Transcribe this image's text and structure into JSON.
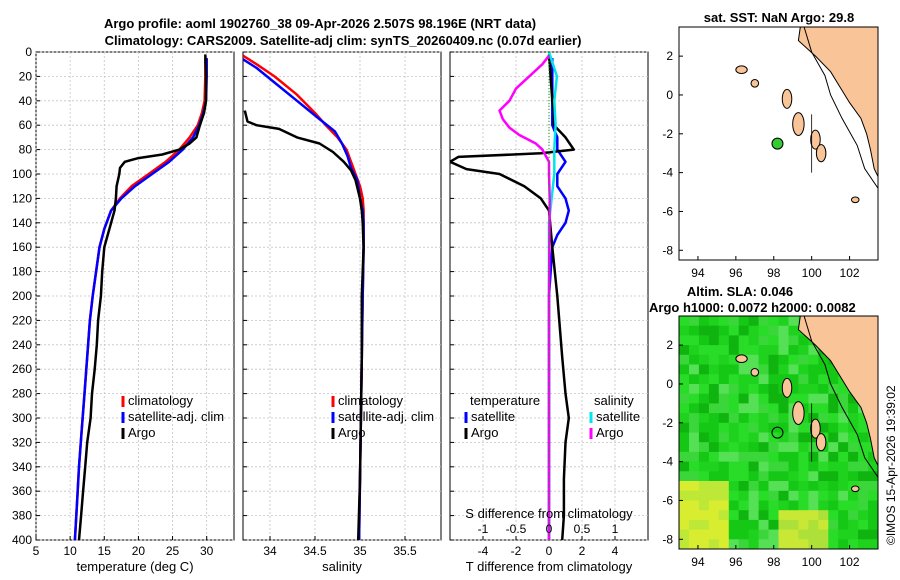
{
  "title_line1": "Argo profile: aoml 1902760_38 09-Apr-2026 2.507S 98.196E (NRT data)",
  "title_line2": "Climatology: CARS2009. Satellite-adj clim: synTS_20260409.nc (0.07d earlier)",
  "timestamp": "©IMOS 15-Apr-2026 19:39:02",
  "colors": {
    "climatology": "#ff0000",
    "satellite": "#0000ff",
    "argo": "#000000",
    "sal_sat": "#00e5ee",
    "sal_argo": "#ff00ff",
    "land": "#f9c497"
  },
  "chart_data": [
    {
      "id": "temperature",
      "type": "line",
      "xlabel": "temperature (deg C)",
      "ylabel": "",
      "xlim": [
        5,
        34
      ],
      "ylim": [
        0,
        400
      ],
      "y_reversed": true,
      "xticks": [
        5,
        10,
        15,
        20,
        25,
        30
      ],
      "yticks": [
        0,
        20,
        40,
        60,
        80,
        100,
        120,
        140,
        160,
        180,
        200,
        220,
        240,
        260,
        280,
        300,
        320,
        340,
        360,
        380,
        400
      ],
      "legend": [
        "climatology",
        "satellite-adj. clim",
        "Argo"
      ],
      "series": [
        {
          "name": "climatology",
          "color": "#ff0000",
          "points": [
            [
              29.8,
              5
            ],
            [
              29.8,
              20
            ],
            [
              29.7,
              40
            ],
            [
              29.3,
              50
            ],
            [
              28.7,
              60
            ],
            [
              27.5,
              70
            ],
            [
              26.0,
              80
            ],
            [
              24.0,
              90
            ],
            [
              21.5,
              100
            ],
            [
              19.0,
              110
            ],
            [
              17.3,
              120
            ],
            [
              16.0,
              130
            ],
            [
              15.0,
              145
            ],
            [
              14.3,
              160
            ],
            [
              13.8,
              180
            ],
            [
              13.3,
              200
            ],
            [
              12.9,
              220
            ],
            [
              12.5,
              250
            ],
            [
              12.1,
              280
            ],
            [
              11.7,
              310
            ],
            [
              11.3,
              340
            ],
            [
              11.0,
              370
            ],
            [
              10.7,
              400
            ]
          ]
        },
        {
          "name": "satellite-adj. clim",
          "color": "#0000ff",
          "points": [
            [
              30.0,
              5
            ],
            [
              30.0,
              20
            ],
            [
              29.9,
              40
            ],
            [
              29.5,
              50
            ],
            [
              28.9,
              60
            ],
            [
              28.0,
              70
            ],
            [
              26.5,
              80
            ],
            [
              24.5,
              90
            ],
            [
              22.0,
              100
            ],
            [
              19.5,
              110
            ],
            [
              17.5,
              120
            ],
            [
              16.0,
              130
            ],
            [
              15.0,
              145
            ],
            [
              14.3,
              160
            ],
            [
              13.8,
              180
            ],
            [
              13.3,
              200
            ],
            [
              12.9,
              220
            ],
            [
              12.5,
              250
            ],
            [
              12.1,
              280
            ],
            [
              11.7,
              310
            ],
            [
              11.3,
              340
            ],
            [
              11.0,
              370
            ],
            [
              10.7,
              400
            ]
          ]
        },
        {
          "name": "Argo",
          "color": "#000000",
          "points": [
            [
              29.8,
              2
            ],
            [
              29.9,
              20
            ],
            [
              29.9,
              40
            ],
            [
              29.6,
              50
            ],
            [
              29.0,
              60
            ],
            [
              28.5,
              70
            ],
            [
              27.5,
              75
            ],
            [
              26.0,
              80
            ],
            [
              23.5,
              84
            ],
            [
              20.0,
              87
            ],
            [
              18.0,
              90
            ],
            [
              17.3,
              95
            ],
            [
              17.2,
              100
            ],
            [
              16.8,
              110
            ],
            [
              16.7,
              120
            ],
            [
              16.5,
              130
            ],
            [
              16.0,
              140
            ],
            [
              15.5,
              150
            ],
            [
              15.0,
              160
            ],
            [
              14.7,
              180
            ],
            [
              14.5,
              200
            ],
            [
              14.1,
              220
            ],
            [
              13.9,
              240
            ],
            [
              13.6,
              260
            ],
            [
              13.2,
              280
            ],
            [
              13.0,
              300
            ],
            [
              12.5,
              320
            ],
            [
              12.2,
              340
            ],
            [
              11.9,
              360
            ],
            [
              11.6,
              380
            ],
            [
              11.3,
              400
            ]
          ]
        }
      ]
    },
    {
      "id": "salinity",
      "type": "line",
      "xlabel": "salinity",
      "ylabel": "",
      "xlim": [
        33.7,
        35.9
      ],
      "ylim": [
        0,
        400
      ],
      "y_reversed": true,
      "xticks": [
        34,
        34.5,
        35,
        35.5
      ],
      "legend": [
        "climatology",
        "satellite-adj. clim",
        "Argo"
      ],
      "series": [
        {
          "name": "climatology",
          "color": "#ff0000",
          "points": [
            [
              33.7,
              3
            ],
            [
              33.85,
              10
            ],
            [
              34.05,
              20
            ],
            [
              34.3,
              35
            ],
            [
              34.5,
              50
            ],
            [
              34.62,
              60
            ],
            [
              34.75,
              70
            ],
            [
              34.85,
              80
            ],
            [
              34.9,
              90
            ],
            [
              34.95,
              100
            ],
            [
              35.0,
              110
            ],
            [
              35.03,
              120
            ],
            [
              35.04,
              130
            ],
            [
              35.04,
              140
            ],
            [
              35.04,
              160
            ],
            [
              35.03,
              200
            ],
            [
              35.02,
              250
            ],
            [
              35.01,
              300
            ],
            [
              35.0,
              350
            ],
            [
              34.99,
              400
            ]
          ]
        },
        {
          "name": "satellite-adj. clim",
          "color": "#0000ff",
          "points": [
            [
              33.7,
              6
            ],
            [
              33.85,
              13
            ],
            [
              34.05,
              25
            ],
            [
              34.3,
              40
            ],
            [
              34.55,
              55
            ],
            [
              34.72,
              65
            ],
            [
              34.8,
              75
            ],
            [
              34.86,
              85
            ],
            [
              34.9,
              95
            ],
            [
              34.97,
              105
            ],
            [
              35.0,
              120
            ],
            [
              35.03,
              130
            ],
            [
              35.04,
              140
            ],
            [
              35.04,
              160
            ],
            [
              35.03,
              200
            ],
            [
              35.02,
              250
            ],
            [
              35.01,
              300
            ],
            [
              35.0,
              350
            ],
            [
              34.99,
              400
            ]
          ]
        },
        {
          "name": "Argo",
          "color": "#000000",
          "points": [
            [
              33.72,
              48
            ],
            [
              33.75,
              57
            ],
            [
              33.85,
              60
            ],
            [
              34.1,
              63
            ],
            [
              34.3,
              70
            ],
            [
              34.55,
              75
            ],
            [
              34.7,
              82
            ],
            [
              34.82,
              90
            ],
            [
              34.9,
              97
            ],
            [
              34.95,
              105
            ],
            [
              35.0,
              120
            ],
            [
              35.02,
              130
            ],
            [
              35.03,
              140
            ],
            [
              35.04,
              160
            ],
            [
              35.02,
              200
            ],
            [
              35.02,
              250
            ],
            [
              35.01,
              300
            ],
            [
              35.0,
              350
            ],
            [
              34.98,
              400
            ]
          ]
        }
      ]
    },
    {
      "id": "difference",
      "type": "line",
      "xlabel": "T difference from climatology",
      "xlabel_top": "S difference from climatology",
      "xlim": [
        -6,
        6
      ],
      "ylim": [
        0,
        400
      ],
      "y_reversed": true,
      "xticks": [
        -4,
        -2,
        0,
        2,
        4
      ],
      "sticks": [
        -1,
        -0.5,
        0,
        0.5,
        1
      ],
      "s_scale": 4,
      "legend_left_title": "temperature",
      "legend_right_title": "salinity",
      "legend_left": [
        "satellite",
        "Argo"
      ],
      "legend_right": [
        "satellite",
        "Argo"
      ],
      "series": [
        {
          "name": "T satellite",
          "color": "#0000ff",
          "points": [
            [
              0.2,
              5
            ],
            [
              0.2,
              20
            ],
            [
              0.2,
              40
            ],
            [
              0.2,
              50
            ],
            [
              0.2,
              60
            ],
            [
              0.5,
              70
            ],
            [
              0.5,
              80
            ],
            [
              1.0,
              90
            ],
            [
              0.5,
              100
            ],
            [
              0.5,
              110
            ],
            [
              1.0,
              120
            ],
            [
              1.2,
              130
            ],
            [
              1.0,
              140
            ],
            [
              0.5,
              150
            ],
            [
              0.2,
              160
            ],
            [
              0.0,
              200
            ],
            [
              0.0,
              300
            ],
            [
              0.0,
              400
            ]
          ]
        },
        {
          "name": "T Argo",
          "color": "#000000",
          "points": [
            [
              0.0,
              2
            ],
            [
              0.1,
              20
            ],
            [
              0.2,
              40
            ],
            [
              0.3,
              50
            ],
            [
              0.3,
              60
            ],
            [
              1.0,
              70
            ],
            [
              1.5,
              80
            ],
            [
              -0.5,
              83
            ],
            [
              -5.5,
              86
            ],
            [
              -6.0,
              90
            ],
            [
              -5.0,
              96
            ],
            [
              -3.0,
              100
            ],
            [
              -1.5,
              110
            ],
            [
              -0.5,
              120
            ],
            [
              0.0,
              130
            ],
            [
              0.2,
              160
            ],
            [
              0.5,
              200
            ],
            [
              0.8,
              250
            ],
            [
              1.0,
              280
            ],
            [
              1.2,
              300
            ],
            [
              1.0,
              320
            ],
            [
              0.9,
              350
            ],
            [
              0.9,
              380
            ],
            [
              0.8,
              400
            ]
          ]
        },
        {
          "name": "S satellite",
          "color": "#00e5ee",
          "points": [
            [
              0.0,
              0
            ],
            [
              0.12,
              20
            ],
            [
              0.08,
              40
            ],
            [
              0.1,
              60
            ],
            [
              0.08,
              80
            ],
            [
              0.08,
              100
            ],
            [
              0.04,
              120
            ],
            [
              0.0,
              140
            ],
            [
              0.0,
              200
            ],
            [
              0.0,
              300
            ],
            [
              0.0,
              400
            ]
          ]
        },
        {
          "name": "S Argo",
          "color": "#ff00ff",
          "points": [
            [
              0.0,
              3
            ],
            [
              -0.1,
              10
            ],
            [
              -0.3,
              20
            ],
            [
              -0.5,
              30
            ],
            [
              -0.6,
              40
            ],
            [
              -0.75,
              48
            ],
            [
              -0.7,
              55
            ],
            [
              -0.6,
              62
            ],
            [
              -0.45,
              68
            ],
            [
              -0.2,
              75
            ],
            [
              -0.1,
              80
            ],
            [
              0.0,
              90
            ],
            [
              0.0,
              100
            ],
            [
              0.01,
              120
            ],
            [
              0.0,
              200
            ],
            [
              0.0,
              300
            ],
            [
              0.0,
              400
            ]
          ]
        }
      ]
    },
    {
      "id": "sst_map",
      "type": "heatmap",
      "title": "sat. SST: NaN Argo: 29.8",
      "xlim": [
        93,
        103.5
      ],
      "ylim": [
        -8.5,
        3.5
      ],
      "xticks": [
        94,
        96,
        98,
        100,
        102
      ],
      "yticks": [
        2,
        0,
        -2,
        -4,
        -6,
        -8
      ],
      "argo_position": [
        98.196,
        -2.507
      ]
    },
    {
      "id": "sla_map",
      "type": "heatmap",
      "title_line1": "Altim. SLA: 0.046",
      "title_line2": "Argo h1000: 0.0072 h2000: 0.0082",
      "xlim": [
        93,
        103.5
      ],
      "ylim": [
        -8.5,
        3.5
      ],
      "xticks": [
        94,
        96,
        98,
        100,
        102
      ],
      "yticks": [
        2,
        0,
        -2,
        -4,
        -6,
        -8
      ],
      "argo_position": [
        98.196,
        -2.507
      ]
    }
  ]
}
